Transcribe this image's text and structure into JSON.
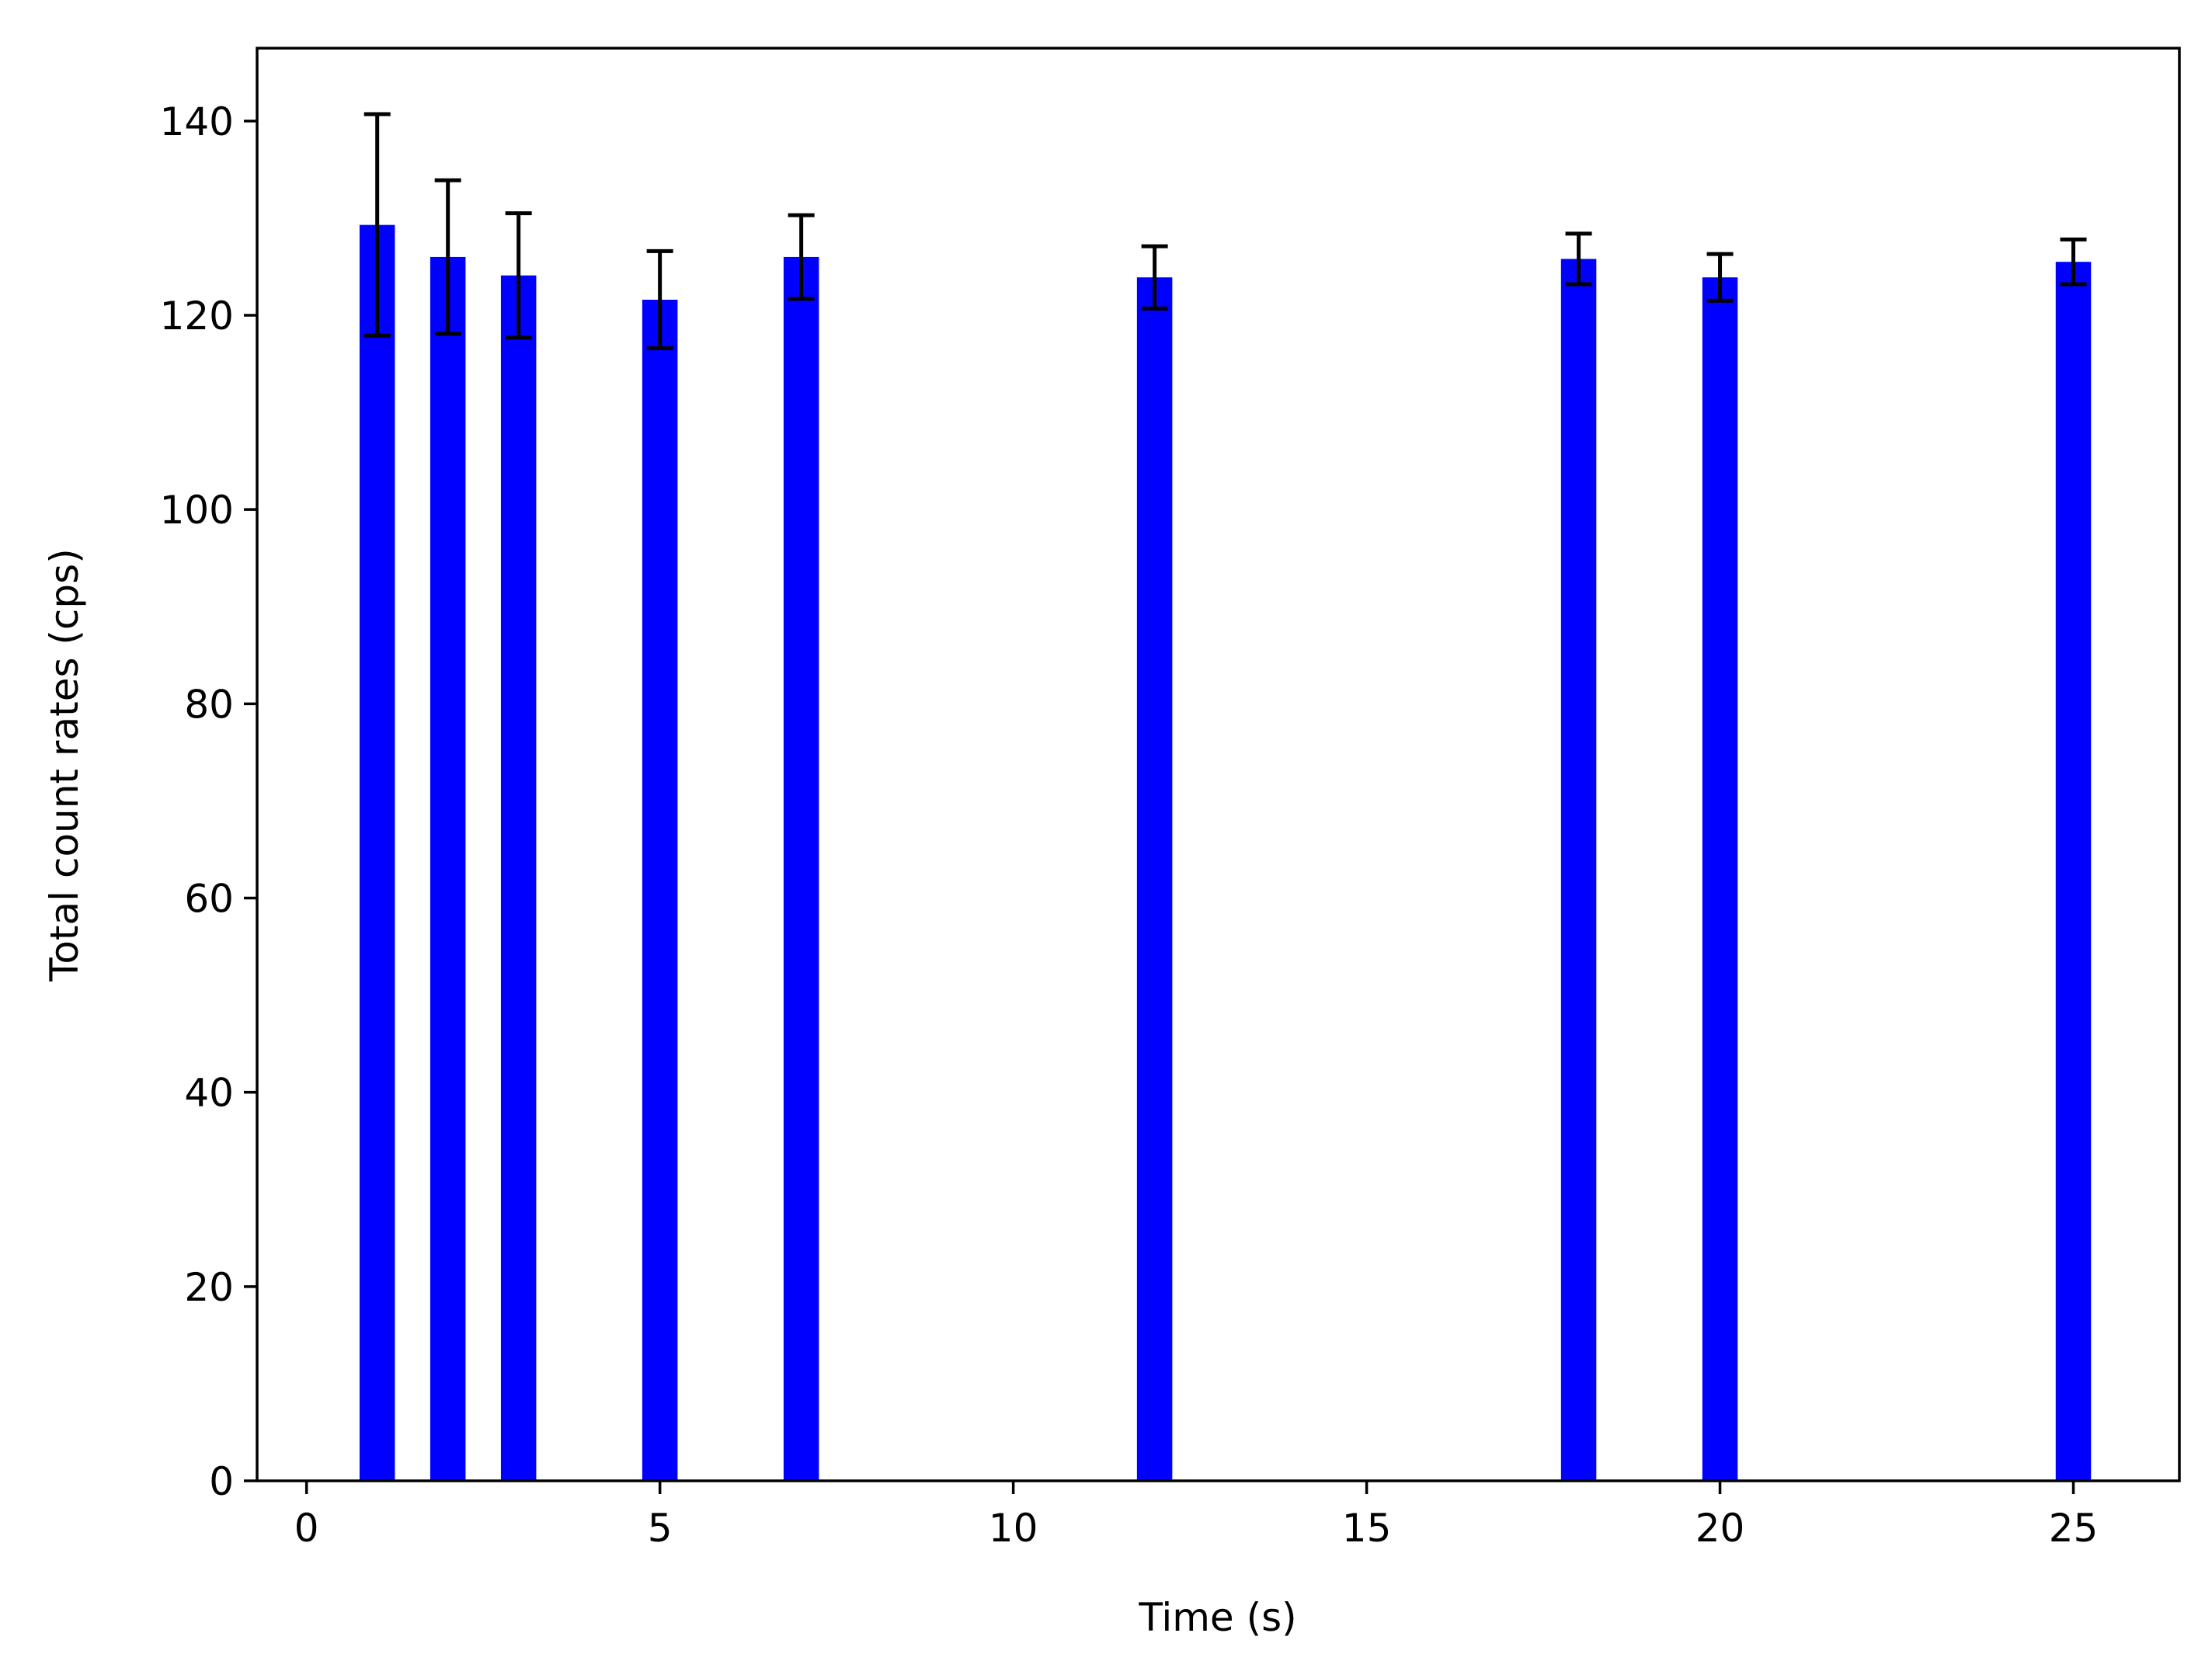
{
  "chart_data": {
    "type": "bar",
    "title": "",
    "xlabel": "Time (s)",
    "ylabel": "Total count rates (cps)",
    "xlim": [
      -0.7,
      26.5
    ],
    "ylim": [
      0,
      147.5
    ],
    "xticks": [
      0,
      5,
      10,
      15,
      20,
      25
    ],
    "yticks": [
      0,
      20,
      40,
      60,
      80,
      100,
      120,
      140
    ],
    "xtick_labels": [
      "0",
      "5",
      "10",
      "15",
      "20",
      "25"
    ],
    "ytick_labels": [
      "0",
      "20",
      "40",
      "60",
      "80",
      "100",
      "120",
      "140"
    ],
    "bar_width": 0.5,
    "grid": false,
    "legend": false,
    "bar_color": "#0000ff",
    "errorbar_color": "#000000",
    "series": [
      {
        "x": [
          1,
          2,
          3,
          5,
          7,
          12,
          18,
          20,
          25
        ],
        "values": [
          129.3,
          126.0,
          124.1,
          121.6,
          126.0,
          123.9,
          125.8,
          123.9,
          125.5
        ],
        "errors": [
          11.4,
          7.9,
          6.4,
          5.0,
          4.3,
          3.2,
          2.6,
          2.4,
          2.3
        ]
      }
    ]
  }
}
